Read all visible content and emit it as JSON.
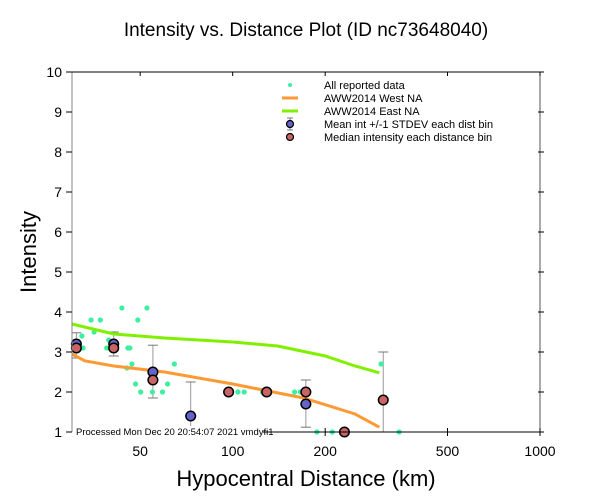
{
  "chart_data": {
    "type": "scatter",
    "title": "Intensity vs. Distance Plot (ID nc73648040)",
    "xlabel": "Hypocentral Distance (km)",
    "ylabel": "Intensity",
    "xscale": "log",
    "xlim": [
      30,
      1000
    ],
    "ylim": [
      1,
      10
    ],
    "xticks": [
      50,
      100,
      200,
      500,
      1000
    ],
    "xtick_labels": [
      "50",
      "100",
      "200",
      "500",
      "1000"
    ],
    "yticks": [
      1,
      2,
      3,
      4,
      5,
      6,
      7,
      8,
      9,
      10
    ],
    "ytick_labels": [
      "1",
      "2",
      "3",
      "4",
      "5",
      "6",
      "7",
      "8",
      "9",
      "10"
    ],
    "grid": false,
    "legend_position": "top-right",
    "legend": [
      {
        "label": "All reported data",
        "kind": "dot",
        "color": "#3cf0a0"
      },
      {
        "label": "AWW2014 West NA",
        "kind": "line",
        "color": "#ff9933"
      },
      {
        "label": "AWW2014 East NA",
        "kind": "line",
        "color": "#80f000"
      },
      {
        "label": "Mean int +/-1 STDEV each dist bin",
        "kind": "mean",
        "color": "#6464c8"
      },
      {
        "label": "Median intensity each distance bin",
        "kind": "median",
        "color": "#c86464"
      }
    ],
    "series": [
      {
        "name": "All reported data",
        "color": "#3cf0a0",
        "points": [
          [
            32.3,
            3.4
          ],
          [
            32.6,
            3.1
          ],
          [
            34.6,
            3.8
          ],
          [
            37.1,
            3.8
          ],
          [
            35.4,
            3.5
          ],
          [
            39.5,
            3.3
          ],
          [
            38.9,
            3.1
          ],
          [
            43.6,
            4.1
          ],
          [
            52.6,
            4.1
          ],
          [
            49.1,
            3.8
          ],
          [
            45.6,
            3.1
          ],
          [
            46.3,
            3.1
          ],
          [
            47.0,
            2.7
          ],
          [
            45.3,
            2.6
          ],
          [
            48.3,
            2.2
          ],
          [
            50.2,
            2.0
          ],
          [
            54.8,
            2.0
          ],
          [
            59.1,
            2.0
          ],
          [
            61.4,
            2.2
          ],
          [
            64.6,
            2.7
          ],
          [
            104,
            2.0
          ],
          [
            109,
            2.0
          ],
          [
            125,
            2.0
          ],
          [
            159,
            2.0
          ],
          [
            166,
            2.0
          ],
          [
            304,
            2.7
          ],
          [
            188,
            1.0
          ],
          [
            211,
            1.0
          ],
          [
            348,
            1.0
          ]
        ]
      },
      {
        "name": "AWW2014 West NA",
        "color": "#ff9933",
        "points": [
          [
            30,
            2.95
          ],
          [
            33,
            2.78
          ],
          [
            41,
            2.65
          ],
          [
            60,
            2.5
          ],
          [
            100,
            2.2
          ],
          [
            170,
            1.85
          ],
          [
            250,
            1.45
          ],
          [
            300,
            1.12
          ]
        ]
      },
      {
        "name": "AWW2014 East NA",
        "color": "#80f000",
        "points": [
          [
            30,
            3.7
          ],
          [
            41,
            3.45
          ],
          [
            60,
            3.35
          ],
          [
            100,
            3.25
          ],
          [
            140,
            3.15
          ],
          [
            200,
            2.9
          ],
          [
            250,
            2.65
          ],
          [
            300,
            2.48
          ]
        ]
      },
      {
        "name": "Mean int +/-1 STDEV each dist bin",
        "color": "#6464c8",
        "points": [
          {
            "x": 31,
            "y": 3.2,
            "lo": 2.85,
            "hi": 3.48
          },
          {
            "x": 41,
            "y": 3.2,
            "lo": 2.9,
            "hi": 3.5
          },
          {
            "x": 55,
            "y": 2.5,
            "lo": 1.85,
            "hi": 3.17
          },
          {
            "x": 73,
            "y": 1.4,
            "lo": 0.55,
            "hi": 2.25
          },
          {
            "x": 173,
            "y": 1.7,
            "lo": 1.12,
            "hi": 2.3
          }
        ]
      },
      {
        "name": "Median intensity each distance bin",
        "color": "#c86464",
        "points": [
          {
            "x": 31,
            "y": 3.1
          },
          {
            "x": 41,
            "y": 3.1
          },
          {
            "x": 55,
            "y": 2.3
          },
          {
            "x": 97,
            "y": 2.0
          },
          {
            "x": 129,
            "y": 2.0
          },
          {
            "x": 173,
            "y": 2.0
          },
          {
            "x": 231,
            "y": 1.0
          },
          {
            "x": 309,
            "y": 1.8,
            "lo": 1.0,
            "hi": 3.0
          }
        ]
      }
    ],
    "annotation": "Processed Mon Dec 20 20:54:07 2021 vmdyfi1"
  }
}
